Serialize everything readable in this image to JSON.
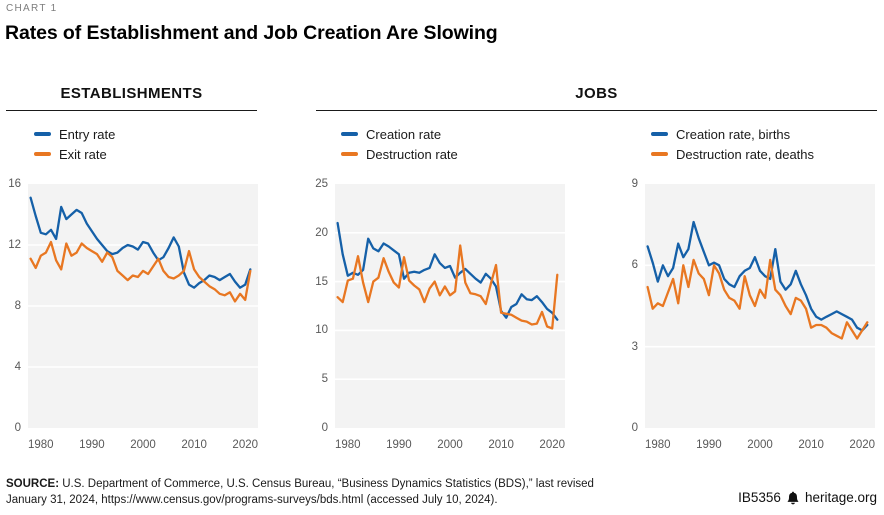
{
  "meta": {
    "chart_label": "CHART 1",
    "title": "Rates of Establishment and Job Creation Are Slowing"
  },
  "sections": [
    {
      "label": "ESTABLISHMENTS"
    },
    {
      "label": "JOBS"
    }
  ],
  "colors": {
    "series_blue": "#1560a8",
    "series_orange": "#e87722",
    "plot_background": "#f3f3f3",
    "grid_line": "#ffffff",
    "axis_text": "#595959",
    "header_rule": "#1a1a1a",
    "muted_label": "#7d7d7d"
  },
  "source": {
    "label": "SOURCE:",
    "text": " U.S. Department of Commerce, U.S. Census Bureau, “Business Dynamics Statistics (BDS),” last revised January 31, 2024, https://www.census.gov/programs-surveys/bds.html (accessed July 10, 2024)."
  },
  "footer": {
    "document_id": "IB5356",
    "site": "heritage.org",
    "logo_icon": "heritage-liberty-bell"
  },
  "chart_data": [
    {
      "id": "establishments",
      "type": "line",
      "section": "ESTABLISHMENTS",
      "x_domain": [
        1977.5,
        2022.5
      ],
      "ylim": [
        0,
        16
      ],
      "yticks": [
        0,
        4,
        8,
        12,
        16
      ],
      "xticks": [
        1980,
        1990,
        2000,
        2010,
        2020
      ],
      "grid": true,
      "legend_position": "top-left",
      "years": [
        1978,
        1979,
        1980,
        1981,
        1982,
        1983,
        1984,
        1985,
        1986,
        1987,
        1988,
        1989,
        1990,
        1991,
        1992,
        1993,
        1994,
        1995,
        1996,
        1997,
        1998,
        1999,
        2000,
        2001,
        2002,
        2003,
        2004,
        2005,
        2006,
        2007,
        2008,
        2009,
        2010,
        2011,
        2012,
        2013,
        2014,
        2015,
        2016,
        2017,
        2018,
        2019,
        2020,
        2021
      ],
      "series": [
        {
          "name": "Entry rate",
          "color": "#1560a8",
          "values": [
            15.1,
            13.9,
            12.8,
            12.7,
            13.0,
            12.4,
            14.5,
            13.7,
            14.0,
            14.3,
            14.1,
            13.4,
            12.9,
            12.4,
            12.0,
            11.6,
            11.4,
            11.5,
            11.8,
            12.0,
            11.9,
            11.7,
            12.2,
            12.1,
            11.5,
            11.0,
            11.2,
            11.8,
            12.5,
            11.9,
            10.2,
            9.4,
            9.2,
            9.5,
            9.7,
            10.0,
            9.9,
            9.7,
            9.9,
            10.1,
            9.6,
            9.2,
            9.4,
            10.4
          ]
        },
        {
          "name": "Exit rate",
          "color": "#e87722",
          "values": [
            11.1,
            10.5,
            11.3,
            11.5,
            12.2,
            11.0,
            10.4,
            12.1,
            11.3,
            11.5,
            12.1,
            11.8,
            11.6,
            11.4,
            10.9,
            11.5,
            11.2,
            10.3,
            10.0,
            9.7,
            10.0,
            9.9,
            10.3,
            10.1,
            10.6,
            11.1,
            10.3,
            9.9,
            9.8,
            10.0,
            10.3,
            11.6,
            10.4,
            9.9,
            9.6,
            9.3,
            9.1,
            8.8,
            8.7,
            8.9,
            8.3,
            8.8,
            8.4,
            10.3
          ]
        }
      ]
    },
    {
      "id": "jobs-rates",
      "type": "line",
      "section": "JOBS",
      "x_domain": [
        1977.5,
        2022.5
      ],
      "ylim": [
        0,
        25
      ],
      "yticks": [
        0,
        5,
        10,
        15,
        20,
        25
      ],
      "xticks": [
        1980,
        1990,
        2000,
        2010,
        2020
      ],
      "grid": true,
      "legend_position": "top-left",
      "years": [
        1978,
        1979,
        1980,
        1981,
        1982,
        1983,
        1984,
        1985,
        1986,
        1987,
        1988,
        1989,
        1990,
        1991,
        1992,
        1993,
        1994,
        1995,
        1996,
        1997,
        1998,
        1999,
        2000,
        2001,
        2002,
        2003,
        2004,
        2005,
        2006,
        2007,
        2008,
        2009,
        2010,
        2011,
        2012,
        2013,
        2014,
        2015,
        2016,
        2017,
        2018,
        2019,
        2020,
        2021
      ],
      "series": [
        {
          "name": "Creation rate",
          "color": "#1560a8",
          "values": [
            21.0,
            17.8,
            15.6,
            15.9,
            15.7,
            16.2,
            19.4,
            18.4,
            18.1,
            18.9,
            18.6,
            18.2,
            17.8,
            15.3,
            15.9,
            16.0,
            15.9,
            16.2,
            16.4,
            17.8,
            16.9,
            16.4,
            16.6,
            15.4,
            15.9,
            16.3,
            15.8,
            15.3,
            14.9,
            15.8,
            15.3,
            14.5,
            12.0,
            11.3,
            12.4,
            12.7,
            13.7,
            13.2,
            13.1,
            13.5,
            12.9,
            12.2,
            11.8,
            11.1
          ]
        },
        {
          "name": "Destruction rate",
          "color": "#e87722",
          "values": [
            13.4,
            12.9,
            15.1,
            15.3,
            17.6,
            14.9,
            12.9,
            15.0,
            15.4,
            17.4,
            16.0,
            14.9,
            14.4,
            17.5,
            15.1,
            14.6,
            14.2,
            12.9,
            14.3,
            15.0,
            13.6,
            14.5,
            13.6,
            14.0,
            18.7,
            14.9,
            13.8,
            13.7,
            13.5,
            12.7,
            14.8,
            16.7,
            11.8,
            11.7,
            11.6,
            11.3,
            11.0,
            10.9,
            10.6,
            10.7,
            11.9,
            10.4,
            10.2,
            15.7
          ]
        }
      ]
    },
    {
      "id": "jobs-births-deaths",
      "type": "line",
      "section": "JOBS",
      "x_domain": [
        1977.5,
        2022.5
      ],
      "ylim": [
        0,
        9
      ],
      "yticks": [
        0,
        3,
        6,
        9
      ],
      "xticks": [
        1980,
        1990,
        2000,
        2010,
        2020
      ],
      "grid": true,
      "legend_position": "top-left",
      "years": [
        1978,
        1979,
        1980,
        1981,
        1982,
        1983,
        1984,
        1985,
        1986,
        1987,
        1988,
        1989,
        1990,
        1991,
        1992,
        1993,
        1994,
        1995,
        1996,
        1997,
        1998,
        1999,
        2000,
        2001,
        2002,
        2003,
        2004,
        2005,
        2006,
        2007,
        2008,
        2009,
        2010,
        2011,
        2012,
        2013,
        2014,
        2015,
        2016,
        2017,
        2018,
        2019,
        2020,
        2021
      ],
      "series": [
        {
          "name": "Creation rate, births",
          "color": "#1560a8",
          "values": [
            6.7,
            6.1,
            5.4,
            6.0,
            5.6,
            5.9,
            6.8,
            6.3,
            6.6,
            7.6,
            7.0,
            6.5,
            6.0,
            6.1,
            6.0,
            5.5,
            5.3,
            5.2,
            5.6,
            5.8,
            5.9,
            6.3,
            5.8,
            5.6,
            5.5,
            6.6,
            5.4,
            5.1,
            5.3,
            5.8,
            5.3,
            4.9,
            4.4,
            4.1,
            4.0,
            4.1,
            4.2,
            4.3,
            4.2,
            4.1,
            4.0,
            3.7,
            3.6,
            3.8
          ]
        },
        {
          "name": "Destruction rate, deaths",
          "color": "#e87722",
          "values": [
            5.2,
            4.4,
            4.6,
            4.5,
            5.0,
            5.5,
            4.6,
            6.0,
            5.2,
            6.2,
            5.7,
            5.5,
            4.9,
            6.0,
            5.7,
            5.1,
            4.8,
            4.7,
            4.4,
            5.6,
            4.9,
            4.5,
            5.1,
            4.8,
            6.2,
            5.1,
            4.9,
            4.5,
            4.2,
            4.8,
            4.7,
            4.4,
            3.7,
            3.8,
            3.8,
            3.7,
            3.5,
            3.4,
            3.3,
            3.9,
            3.6,
            3.3,
            3.6,
            3.9
          ]
        }
      ]
    }
  ]
}
